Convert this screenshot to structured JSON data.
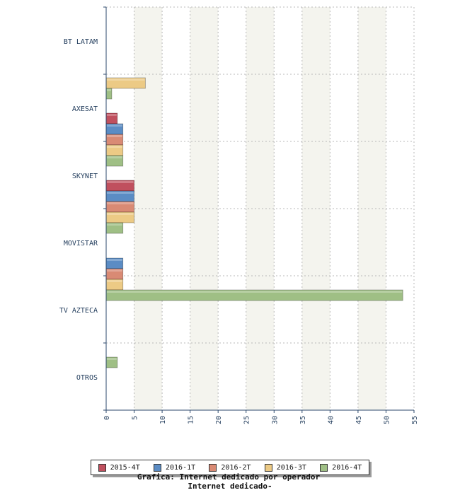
{
  "chart_data": {
    "type": "bar",
    "orientation": "horizontal",
    "categories": [
      "BT LATAM",
      "AXESAT",
      "SKYNET",
      "MOVISTAR",
      "TV AZTECA",
      "OTROS"
    ],
    "series": [
      {
        "name": "2015-4T",
        "color": "#c0505e",
        "values": [
          0,
          2,
          5,
          0,
          0,
          0
        ]
      },
      {
        "name": "2016-1T",
        "color": "#5b8cc4",
        "values": [
          0,
          3,
          5,
          3,
          0,
          0
        ]
      },
      {
        "name": "2016-2T",
        "color": "#d98a74",
        "values": [
          0,
          3,
          5,
          3,
          0,
          0
        ]
      },
      {
        "name": "2016-3T",
        "color": "#ecca85",
        "values": [
          7,
          3,
          5,
          3,
          0,
          0
        ]
      },
      {
        "name": "2016-4T",
        "color": "#9fbf85",
        "values": [
          1,
          3,
          3,
          53,
          2,
          0
        ]
      }
    ],
    "xlim": [
      0,
      55
    ],
    "xticks": [
      0,
      5,
      10,
      15,
      20,
      25,
      30,
      35,
      40,
      45,
      50,
      55
    ],
    "xtick_labels": [
      "0",
      "5",
      "10",
      "15",
      "20",
      "25",
      "30",
      "35",
      "40",
      "45",
      "50",
      "55"
    ],
    "grid": true,
    "legend_position": "bottom"
  },
  "captions": {
    "line1": "Grafica: Internet dedicado por operador",
    "line2": "Internet dedicado-"
  }
}
